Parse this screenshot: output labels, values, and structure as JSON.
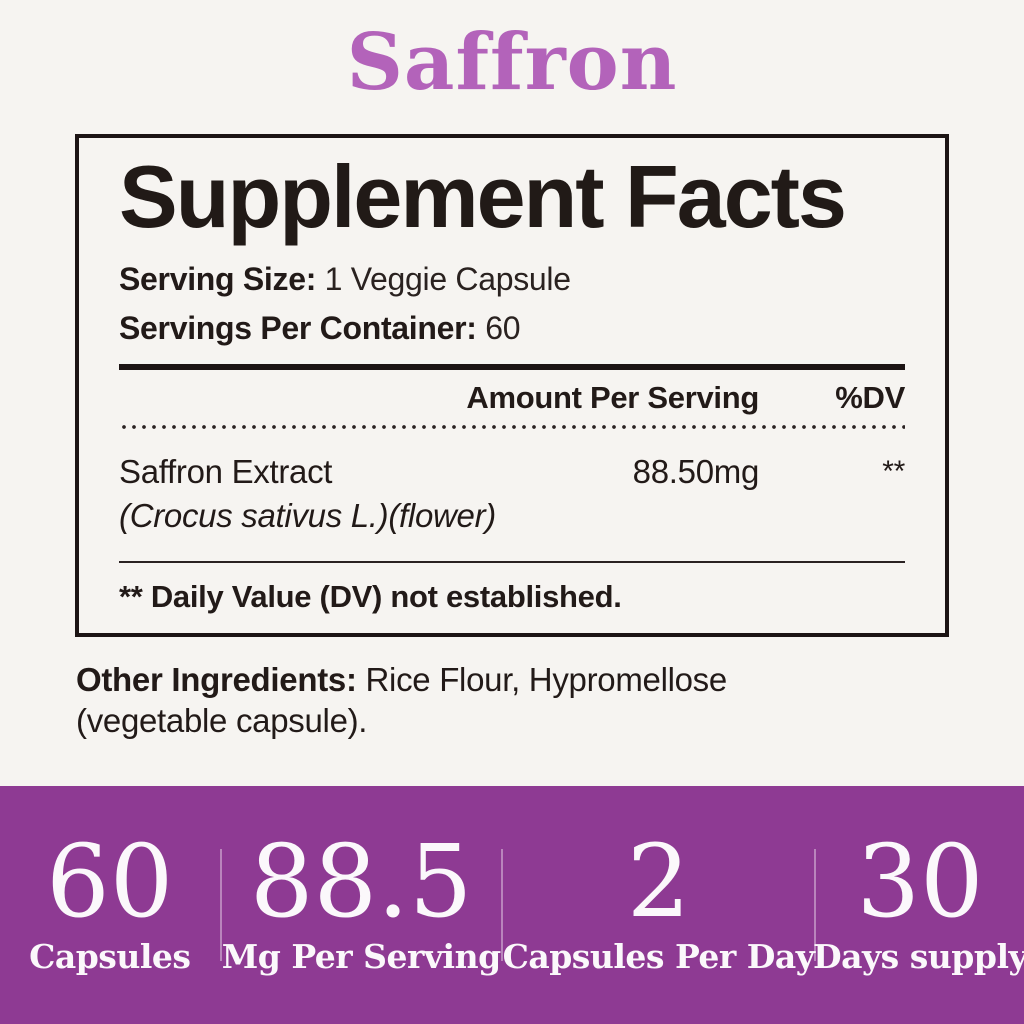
{
  "title": {
    "text": "Saffron",
    "color": "#b363ba"
  },
  "facts": {
    "heading": "Supplement Facts",
    "serving_size": {
      "label": "Serving Size:",
      "value": "1 Veggie Capsule"
    },
    "servings_per_container": {
      "label": "Servings Per Container:",
      "value": "60"
    },
    "columns": {
      "amount": "Amount Per Serving",
      "dv": "%DV"
    },
    "ingredients": [
      {
        "name": "Saffron Extract",
        "detail": "(Crocus sativus L.)(flower)",
        "amount": "88.50mg",
        "dv": "**"
      }
    ],
    "footnote": "** Daily Value (DV) not established."
  },
  "other_ingredients": {
    "label": "Other Ingredients:",
    "value": "Rice Flour, Hypromellose (vegetable capsule)."
  },
  "stats_band": {
    "background": "#8e3a93",
    "items": [
      {
        "value": "60",
        "label": "Capsules"
      },
      {
        "value": "88.5",
        "label": "Mg Per Serving"
      },
      {
        "value": "2",
        "label": "Capsules Per Day"
      },
      {
        "value": "30",
        "label": "Days supply"
      }
    ]
  },
  "colors": {
    "page_background": "#f6f4f1",
    "text": "#221a18",
    "accent_purple": "#8e3a93",
    "title_purple": "#b363ba"
  }
}
